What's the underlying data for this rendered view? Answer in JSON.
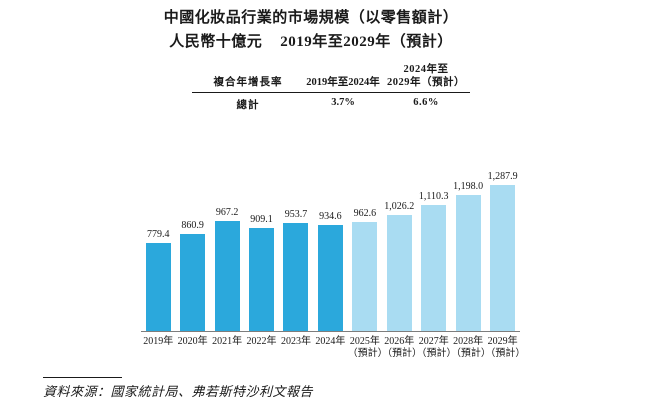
{
  "header": {
    "title": "中國化妝品行業的市場規模（以零售額計）",
    "subtitle_unit": "人民幣十億元",
    "subtitle_range": "2019年至2029年（預計）"
  },
  "cagr_table": {
    "col1_header": "複合年增長率",
    "col2_header": "2019年至2024年",
    "col3_header_line1": "2024年至",
    "col3_header_line2": "2029年（預計）",
    "row_label": "總計",
    "col2_value": "3.7%",
    "col3_value": "6.6%"
  },
  "chart_data": {
    "type": "bar",
    "title": "中國化妝品行業的市場規模（以零售額計）",
    "ylabel": "人民幣十億元",
    "xlabel": "",
    "categories": [
      "2019年",
      "2020年",
      "2021年",
      "2022年",
      "2023年",
      "2024年",
      "2025年",
      "2026年",
      "2027年",
      "2028年",
      "2029年"
    ],
    "category_sublabels": [
      "",
      "",
      "",
      "",
      "",
      "",
      "（預計）",
      "（預計）",
      "（預計）",
      "（預計）",
      "（預計）"
    ],
    "values": [
      779.4,
      860.9,
      967.2,
      909.1,
      953.7,
      934.6,
      962.6,
      1026.2,
      1110.3,
      1198.0,
      1287.9
    ],
    "value_labels": [
      "779.4",
      "860.9",
      "967.2",
      "909.1",
      "953.7",
      "934.6",
      "962.6",
      "1,026.2",
      "1,110.3",
      "1,198.0",
      "1,287.9"
    ],
    "forecast_start_index": 6,
    "colors": {
      "actual": "#2BA8DC",
      "forecast": "#A9DCF2"
    },
    "baseline_color": "#7d7d7d",
    "ylim": [
      0,
      1430
    ],
    "grid": false,
    "legend": "none"
  },
  "footer": {
    "source": "資料來源：國家統計局、弗若斯特沙利文報告"
  }
}
